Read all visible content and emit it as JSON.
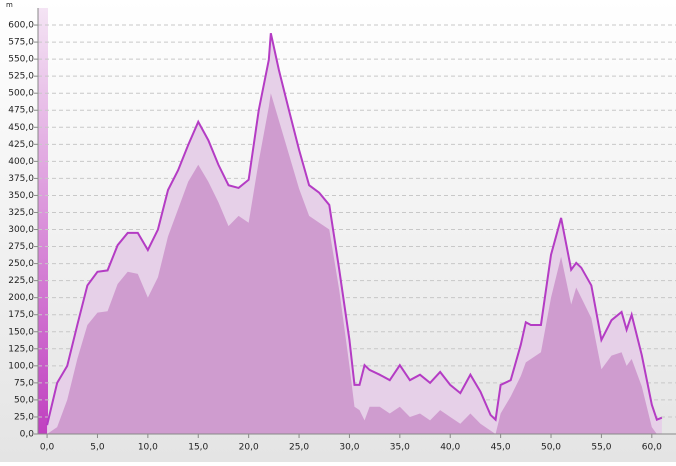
{
  "chart_data": {
    "type": "area",
    "unit_label": "m",
    "x": [
      0,
      1,
      2,
      3,
      4,
      5,
      6,
      7,
      8,
      9,
      10,
      11,
      12,
      13,
      14,
      15,
      16,
      17,
      18,
      19,
      20,
      21,
      22,
      22.2,
      23,
      24,
      25,
      26,
      27,
      28,
      29,
      30,
      30.5,
      31,
      31.5,
      32,
      33,
      34,
      35,
      36,
      37,
      38,
      39,
      40,
      41,
      42,
      43,
      44,
      44.5,
      45,
      46,
      47,
      47.5,
      48,
      49,
      50,
      51,
      52,
      52.5,
      53,
      54,
      55,
      56,
      57,
      57.5,
      58,
      59,
      60,
      60.5,
      61
    ],
    "series": [
      {
        "color": "#b43cc4",
        "fill": "#e6d0e8",
        "values": [
          13,
          75,
          100,
          160,
          218,
          238,
          240,
          277,
          295,
          295,
          270,
          300,
          358,
          387,
          424,
          458,
          431,
          395,
          365,
          361,
          373,
          475,
          549,
          588,
          534,
          475,
          417,
          365,
          354,
          336,
          240,
          138,
          72,
          72,
          101,
          94,
          87,
          79,
          101,
          79,
          87,
          75,
          91,
          72,
          60,
          87,
          62,
          28,
          21,
          72,
          79,
          131,
          164,
          160,
          160,
          263,
          317,
          241,
          251,
          244,
          218,
          138,
          167,
          179,
          153,
          175,
          116,
          43,
          21,
          24
        ]
      },
      {
        "color": "#cf9ccf",
        "fill": "#cf9ccf",
        "values": [
          0,
          10,
          50,
          110,
          160,
          178,
          180,
          220,
          238,
          235,
          200,
          230,
          290,
          330,
          370,
          395,
          370,
          340,
          305,
          320,
          310,
          400,
          480,
          500,
          460,
          410,
          360,
          320,
          310,
          300,
          210,
          100,
          40,
          35,
          20,
          40,
          40,
          30,
          40,
          25,
          30,
          20,
          35,
          25,
          15,
          30,
          15,
          5,
          0,
          30,
          55,
          85,
          105,
          110,
          120,
          200,
          260,
          190,
          215,
          200,
          170,
          95,
          115,
          120,
          100,
          110,
          70,
          10,
          0,
          0
        ]
      }
    ],
    "xlim": [
      -0.9,
      62.4
    ],
    "ylim": [
      0,
      625
    ],
    "xticks": [
      {
        "value": 0,
        "label": "0,0"
      },
      {
        "value": 5,
        "label": "5,0"
      },
      {
        "value": 10,
        "label": "10,0"
      },
      {
        "value": 15,
        "label": "15,0"
      },
      {
        "value": 20,
        "label": "20,0"
      },
      {
        "value": 25,
        "label": "25,0"
      },
      {
        "value": 30,
        "label": "30,0"
      },
      {
        "value": 35,
        "label": "35,0"
      },
      {
        "value": 40,
        "label": "40,0"
      },
      {
        "value": 45,
        "label": "45,0"
      },
      {
        "value": 50,
        "label": "50,0"
      },
      {
        "value": 55,
        "label": "55,0"
      },
      {
        "value": 60,
        "label": "60,0"
      }
    ],
    "yticks": [
      {
        "value": 0,
        "label": "0,0"
      },
      {
        "value": 25,
        "label": "25,0"
      },
      {
        "value": 50,
        "label": "50,0"
      },
      {
        "value": 75,
        "label": "75,0"
      },
      {
        "value": 100,
        "label": "100,0"
      },
      {
        "value": 125,
        "label": "125,0"
      },
      {
        "value": 150,
        "label": "150,0"
      },
      {
        "value": 175,
        "label": "175,0"
      },
      {
        "value": 200,
        "label": "200,0"
      },
      {
        "value": 225,
        "label": "225,0"
      },
      {
        "value": 250,
        "label": "250,0"
      },
      {
        "value": 275,
        "label": "275,0"
      },
      {
        "value": 300,
        "label": "300,0"
      },
      {
        "value": 325,
        "label": "325,0"
      },
      {
        "value": 350,
        "label": "350,0"
      },
      {
        "value": 375,
        "label": "375,0"
      },
      {
        "value": 400,
        "label": "400,0"
      },
      {
        "value": 425,
        "label": "425,0"
      },
      {
        "value": 450,
        "label": "450,0"
      },
      {
        "value": 475,
        "label": "475,0"
      },
      {
        "value": 500,
        "label": "500,0"
      },
      {
        "value": 525,
        "label": "525,0"
      },
      {
        "value": 550,
        "label": "550,0"
      },
      {
        "value": 575,
        "label": "575,0"
      },
      {
        "value": 600,
        "label": "600,0"
      }
    ],
    "grid": true
  }
}
